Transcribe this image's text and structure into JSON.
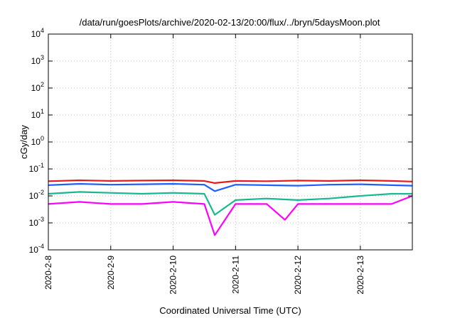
{
  "chart_data": {
    "type": "line",
    "title": "/data/run/goesPlots/archive/2020-02-13/20:00/flux/../bryn/5daysMoon.plot",
    "xlabel": "Coordinated Universal Time (UTC)",
    "ylabel": "cGy/day",
    "y_scale": "log",
    "ylim": [
      0.0001,
      10000
    ],
    "y_ticks": [
      {
        "base": "10",
        "exp": "-4",
        "value": 0.0001
      },
      {
        "base": "10",
        "exp": "-3",
        "value": 0.001
      },
      {
        "base": "10",
        "exp": "-2",
        "value": 0.01
      },
      {
        "base": "10",
        "exp": "-1",
        "value": 0.1
      },
      {
        "base": "10",
        "exp": "0",
        "value": 1
      },
      {
        "base": "10",
        "exp": "1",
        "value": 10
      },
      {
        "base": "10",
        "exp": "2",
        "value": 100
      },
      {
        "base": "10",
        "exp": "3",
        "value": 1000
      },
      {
        "base": "10",
        "exp": "4",
        "value": 10000
      }
    ],
    "x_ticks": [
      "2020-2-8",
      "2020-2-9",
      "2020-2-10",
      "2020-2-11",
      "2020-2-12",
      "2020-2-13"
    ],
    "xlim": [
      "2020-02-08T00:00",
      "2020-02-13T20:00"
    ],
    "grid": true,
    "legend": "none",
    "series": [
      {
        "color": "#e41a1c",
        "x": [
          "2020-02-08T00:00",
          "2020-02-08T12:00",
          "2020-02-09T00:00",
          "2020-02-09T12:00",
          "2020-02-10T00:00",
          "2020-02-10T12:00",
          "2020-02-10T16:00",
          "2020-02-11T00:00",
          "2020-02-11T12:00",
          "2020-02-12T00:00",
          "2020-02-12T12:00",
          "2020-02-13T00:00",
          "2020-02-13T12:00",
          "2020-02-13T20:00"
        ],
        "values": [
          0.035,
          0.038,
          0.036,
          0.037,
          0.038,
          0.036,
          0.03,
          0.036,
          0.035,
          0.037,
          0.036,
          0.038,
          0.036,
          0.034
        ]
      },
      {
        "color": "#1f5fff",
        "x": [
          "2020-02-08T00:00",
          "2020-02-08T12:00",
          "2020-02-09T00:00",
          "2020-02-09T12:00",
          "2020-02-10T00:00",
          "2020-02-10T12:00",
          "2020-02-10T16:00",
          "2020-02-11T00:00",
          "2020-02-11T12:00",
          "2020-02-12T00:00",
          "2020-02-12T12:00",
          "2020-02-13T00:00",
          "2020-02-13T12:00",
          "2020-02-13T20:00"
        ],
        "values": [
          0.025,
          0.028,
          0.026,
          0.027,
          0.028,
          0.026,
          0.015,
          0.026,
          0.025,
          0.024,
          0.026,
          0.027,
          0.025,
          0.024
        ]
      },
      {
        "color": "#17b890",
        "x": [
          "2020-02-08T00:00",
          "2020-02-08T12:00",
          "2020-02-09T00:00",
          "2020-02-09T12:00",
          "2020-02-10T00:00",
          "2020-02-10T12:00",
          "2020-02-10T16:00",
          "2020-02-11T00:00",
          "2020-02-11T12:00",
          "2020-02-12T00:00",
          "2020-02-12T12:00",
          "2020-02-13T00:00",
          "2020-02-13T12:00",
          "2020-02-13T20:00"
        ],
        "values": [
          0.012,
          0.014,
          0.013,
          0.012,
          0.013,
          0.012,
          0.002,
          0.007,
          0.008,
          0.007,
          0.008,
          0.01,
          0.012,
          0.012
        ]
      },
      {
        "color": "#ff00ff",
        "x": [
          "2020-02-08T00:00",
          "2020-02-08T12:00",
          "2020-02-09T00:00",
          "2020-02-09T12:00",
          "2020-02-10T00:00",
          "2020-02-10T12:00",
          "2020-02-10T16:00",
          "2020-02-11T00:00",
          "2020-02-11T12:00",
          "2020-02-11T19:00",
          "2020-02-12T00:00",
          "2020-02-12T12:00",
          "2020-02-13T00:00",
          "2020-02-13T12:00",
          "2020-02-13T20:00"
        ],
        "values": [
          0.005,
          0.006,
          0.005,
          0.005,
          0.006,
          0.005,
          0.00035,
          0.005,
          0.005,
          0.0013,
          0.005,
          0.005,
          0.005,
          0.005,
          0.01
        ]
      }
    ]
  }
}
